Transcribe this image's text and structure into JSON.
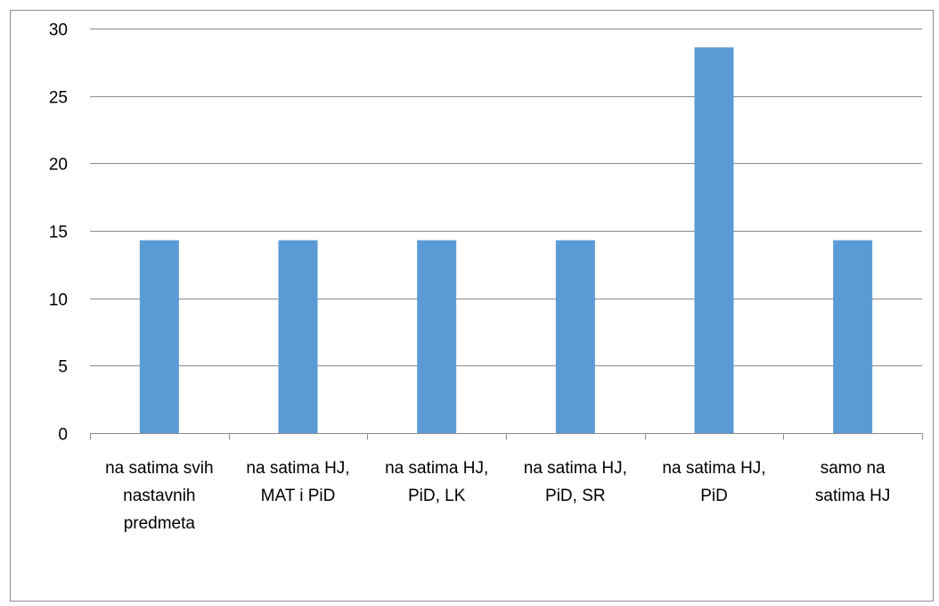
{
  "chart_data": {
    "type": "bar",
    "title": "",
    "xlabel": "",
    "ylabel": "",
    "categories": [
      [
        "na satima svih",
        "nastavnih",
        "predmeta"
      ],
      [
        "na satima HJ,",
        "MAT i PiD"
      ],
      [
        "na satima HJ,",
        "PiD, LK"
      ],
      [
        "na satima HJ,",
        "PiD, SR"
      ],
      [
        "na satima HJ,",
        "PiD"
      ],
      [
        "samo na",
        "satima HJ"
      ]
    ],
    "values": [
      14.3,
      14.3,
      14.3,
      14.3,
      28.6,
      14.3
    ],
    "ylim": [
      0,
      30
    ],
    "yticks": [
      0,
      5,
      10,
      15,
      20,
      25,
      30
    ],
    "grid": true,
    "legend": "none",
    "colors": {
      "bar": "#5b9bd5",
      "grid": "#8c8c8c",
      "axis": "#8c8c8c"
    }
  }
}
